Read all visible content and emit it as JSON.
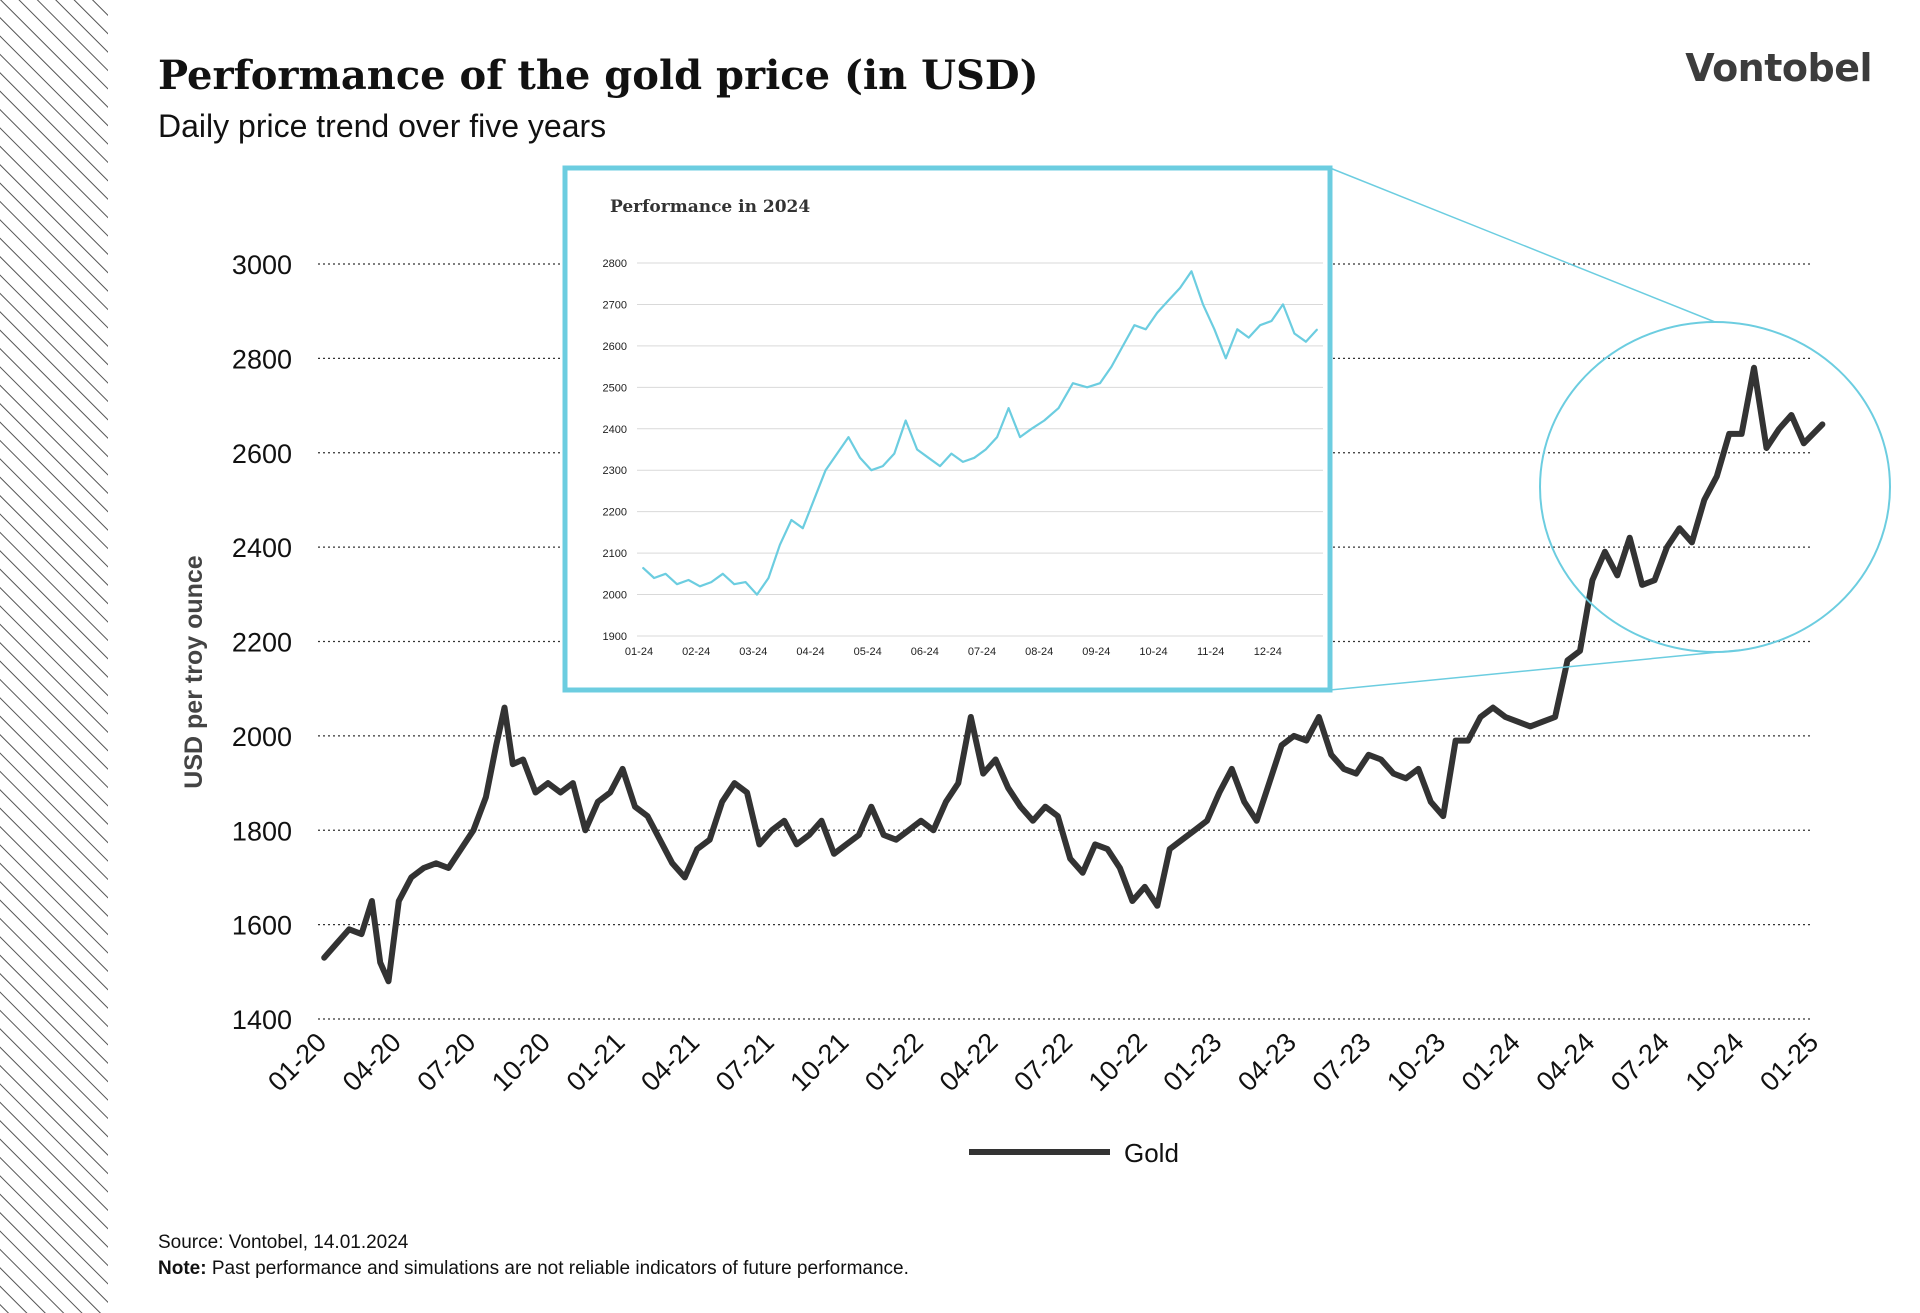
{
  "header": {
    "title": "Performance of the gold price (in USD)",
    "subtitle": "Daily price trend over five years",
    "logo": "Vontobel"
  },
  "footer": {
    "source": "Source: Vontobel, 14.01.2024",
    "note_label": "Note:",
    "note_text": "Past performance and simulations are not reliable indicators of future performance."
  },
  "colors": {
    "main_line": "#333333",
    "inset_line": "#6ccde0",
    "inset_border": "#6ccde0",
    "grid": "#333333"
  },
  "chart_data": [
    {
      "type": "line",
      "title": "",
      "xlabel": "",
      "ylabel": "USD per troy ounce",
      "ylim": [
        1400,
        3000
      ],
      "yticks": [
        1400,
        1600,
        1800,
        2000,
        2200,
        2400,
        2600,
        2800,
        3000
      ],
      "xticks": [
        "01-20",
        "04-20",
        "07-20",
        "10-20",
        "01-21",
        "04-21",
        "07-21",
        "10-21",
        "01-22",
        "04-22",
        "07-22",
        "10-22",
        "01-23",
        "04-23",
        "07-23",
        "10-23",
        "01-24",
        "04-24",
        "07-24",
        "10-24",
        "01-25"
      ],
      "grid": "horizontal dotted",
      "legend": "bottom-center",
      "series": [
        {
          "name": "Gold",
          "color": "#333333",
          "points": [
            [
              "01-20",
              1530
            ],
            [
              "01-20",
              1560
            ],
            [
              "02-20",
              1590
            ],
            [
              "02-20",
              1580
            ],
            [
              "03-20",
              1650
            ],
            [
              "03-20",
              1520
            ],
            [
              "03-20",
              1480
            ],
            [
              "04-20",
              1650
            ],
            [
              "04-20",
              1700
            ],
            [
              "05-20",
              1720
            ],
            [
              "05-20",
              1730
            ],
            [
              "06-20",
              1720
            ],
            [
              "06-20",
              1760
            ],
            [
              "07-20",
              1800
            ],
            [
              "07-20",
              1870
            ],
            [
              "08-20",
              1980
            ],
            [
              "08-20",
              2060
            ],
            [
              "08-20",
              1940
            ],
            [
              "09-20",
              1950
            ],
            [
              "09-20",
              1880
            ],
            [
              "10-20",
              1900
            ],
            [
              "10-20",
              1880
            ],
            [
              "11-20",
              1900
            ],
            [
              "11-20",
              1800
            ],
            [
              "12-20",
              1860
            ],
            [
              "12-20",
              1880
            ],
            [
              "01-21",
              1930
            ],
            [
              "01-21",
              1850
            ],
            [
              "02-21",
              1830
            ],
            [
              "02-21",
              1780
            ],
            [
              "03-21",
              1730
            ],
            [
              "03-21",
              1700
            ],
            [
              "04-21",
              1760
            ],
            [
              "04-21",
              1780
            ],
            [
              "05-21",
              1860
            ],
            [
              "05-21",
              1900
            ],
            [
              "06-21",
              1880
            ],
            [
              "06-21",
              1770
            ],
            [
              "07-21",
              1800
            ],
            [
              "07-21",
              1820
            ],
            [
              "08-21",
              1770
            ],
            [
              "08-21",
              1790
            ],
            [
              "09-21",
              1820
            ],
            [
              "09-21",
              1750
            ],
            [
              "10-21",
              1770
            ],
            [
              "10-21",
              1790
            ],
            [
              "11-21",
              1850
            ],
            [
              "11-21",
              1790
            ],
            [
              "12-21",
              1780
            ],
            [
              "12-21",
              1800
            ],
            [
              "01-22",
              1820
            ],
            [
              "01-22",
              1800
            ],
            [
              "02-22",
              1860
            ],
            [
              "02-22",
              1900
            ],
            [
              "03-22",
              2040
            ],
            [
              "03-22",
              1920
            ],
            [
              "04-22",
              1950
            ],
            [
              "04-22",
              1890
            ],
            [
              "05-22",
              1850
            ],
            [
              "05-22",
              1820
            ],
            [
              "06-22",
              1850
            ],
            [
              "06-22",
              1830
            ],
            [
              "07-22",
              1740
            ],
            [
              "07-22",
              1710
            ],
            [
              "08-22",
              1770
            ],
            [
              "08-22",
              1760
            ],
            [
              "09-22",
              1720
            ],
            [
              "09-22",
              1650
            ],
            [
              "10-22",
              1680
            ],
            [
              "10-22",
              1640
            ],
            [
              "11-22",
              1760
            ],
            [
              "11-22",
              1780
            ],
            [
              "12-22",
              1800
            ],
            [
              "12-22",
              1820
            ],
            [
              "01-23",
              1880
            ],
            [
              "01-23",
              1930
            ],
            [
              "02-23",
              1860
            ],
            [
              "02-23",
              1820
            ],
            [
              "03-23",
              1900
            ],
            [
              "03-23",
              1980
            ],
            [
              "04-23",
              2000
            ],
            [
              "04-23",
              1990
            ],
            [
              "05-23",
              2040
            ],
            [
              "05-23",
              1960
            ],
            [
              "06-23",
              1930
            ],
            [
              "06-23",
              1920
            ],
            [
              "07-23",
              1960
            ],
            [
              "07-23",
              1950
            ],
            [
              "08-23",
              1920
            ],
            [
              "08-23",
              1910
            ],
            [
              "09-23",
              1930
            ],
            [
              "09-23",
              1860
            ],
            [
              "10-23",
              1830
            ],
            [
              "10-23",
              1990
            ],
            [
              "11-23",
              1990
            ],
            [
              "11-23",
              2040
            ],
            [
              "12-23",
              2060
            ],
            [
              "12-23",
              2040
            ],
            [
              "01-24",
              2030
            ],
            [
              "01-24",
              2020
            ],
            [
              "02-24",
              2030
            ],
            [
              "02-24",
              2040
            ],
            [
              "03-24",
              2160
            ],
            [
              "03-24",
              2180
            ],
            [
              "04-24",
              2330
            ],
            [
              "04-24",
              2390
            ],
            [
              "05-24",
              2340
            ],
            [
              "05-24",
              2420
            ],
            [
              "06-24",
              2320
            ],
            [
              "06-24",
              2330
            ],
            [
              "07-24",
              2400
            ],
            [
              "07-24",
              2440
            ],
            [
              "08-24",
              2410
            ],
            [
              "08-24",
              2500
            ],
            [
              "09-24",
              2550
            ],
            [
              "09-24",
              2640
            ],
            [
              "10-24",
              2640
            ],
            [
              "10-24",
              2780
            ],
            [
              "11-24",
              2610
            ],
            [
              "11-24",
              2650
            ],
            [
              "12-24",
              2680
            ],
            [
              "12-24",
              2620
            ],
            [
              "01-25",
              2660
            ]
          ]
        }
      ]
    },
    {
      "type": "line",
      "title": "Performance in 2024",
      "xlabel": "",
      "ylabel": "",
      "ylim": [
        1900,
        2800
      ],
      "yticks": [
        1900,
        2000,
        2100,
        2200,
        2300,
        2400,
        2500,
        2600,
        2700,
        2800
      ],
      "xticks": [
        "01-24",
        "02-24",
        "03-24",
        "04-24",
        "05-24",
        "06-24",
        "07-24",
        "08-24",
        "09-24",
        "10-24",
        "11-24",
        "12-24"
      ],
      "grid": "horizontal",
      "series": [
        {
          "name": "",
          "color": "#6ccde0",
          "points": [
            [
              "01-24",
              2065
            ],
            [
              "01-24",
              2040
            ],
            [
              "01-24",
              2050
            ],
            [
              "01-24",
              2025
            ],
            [
              "01-24",
              2035
            ],
            [
              "02-24",
              2020
            ],
            [
              "02-24",
              2030
            ],
            [
              "02-24",
              2050
            ],
            [
              "02-24",
              2025
            ],
            [
              "02-24",
              2030
            ],
            [
              "03-24",
              2000
            ],
            [
              "03-24",
              2040
            ],
            [
              "03-24",
              2120
            ],
            [
              "03-24",
              2180
            ],
            [
              "03-24",
              2160
            ],
            [
              "04-24",
              2230
            ],
            [
              "04-24",
              2300
            ],
            [
              "04-24",
              2340
            ],
            [
              "04-24",
              2380
            ],
            [
              "04-24",
              2330
            ],
            [
              "05-24",
              2300
            ],
            [
              "05-24",
              2310
            ],
            [
              "05-24",
              2340
            ],
            [
              "05-24",
              2420
            ],
            [
              "05-24",
              2350
            ],
            [
              "06-24",
              2330
            ],
            [
              "06-24",
              2310
            ],
            [
              "06-24",
              2340
            ],
            [
              "06-24",
              2320
            ],
            [
              "06-24",
              2330
            ],
            [
              "07-24",
              2350
            ],
            [
              "07-24",
              2380
            ],
            [
              "07-24",
              2450
            ],
            [
              "07-24",
              2380
            ],
            [
              "07-24",
              2400
            ],
            [
              "08-24",
              2420
            ],
            [
              "08-24",
              2450
            ],
            [
              "08-24",
              2510
            ],
            [
              "08-24",
              2500
            ],
            [
              "09-24",
              2510
            ],
            [
              "09-24",
              2550
            ],
            [
              "09-24",
              2600
            ],
            [
              "09-24",
              2650
            ],
            [
              "09-24",
              2640
            ],
            [
              "10-24",
              2680
            ],
            [
              "10-24",
              2710
            ],
            [
              "10-24",
              2740
            ],
            [
              "10-24",
              2780
            ],
            [
              "10-24",
              2700
            ],
            [
              "11-24",
              2640
            ],
            [
              "11-24",
              2570
            ],
            [
              "11-24",
              2640
            ],
            [
              "11-24",
              2620
            ],
            [
              "11-24",
              2650
            ],
            [
              "12-24",
              2660
            ],
            [
              "12-24",
              2700
            ],
            [
              "12-24",
              2630
            ],
            [
              "12-24",
              2610
            ],
            [
              "12-24",
              2640
            ]
          ]
        }
      ]
    }
  ]
}
